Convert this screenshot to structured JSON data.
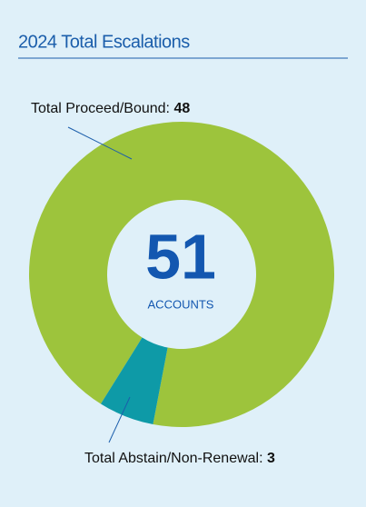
{
  "chart_data": {
    "type": "donut",
    "title": "2024 Total Escalations",
    "total": 51,
    "center_label": "ACCOUNTS",
    "categories": [
      "Total Proceed/Bound:",
      "Total Abstain/Non-Renewal:"
    ],
    "values": [
      48,
      3
    ],
    "colors": [
      "#9dc43c",
      "#0e9aa7"
    ]
  }
}
